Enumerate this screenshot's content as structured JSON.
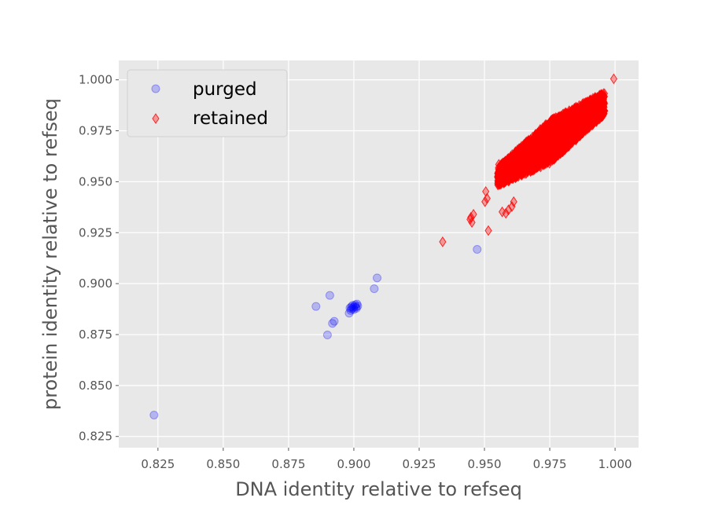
{
  "chart_data": {
    "type": "scatter",
    "title": "",
    "xlabel": "DNA identity relative to refseq",
    "ylabel": "protein identity relative to refseq",
    "xlim": [
      0.81,
      1.009
    ],
    "ylim": [
      0.8195,
      1.0095
    ],
    "xticks": [
      0.825,
      0.85,
      0.875,
      0.9,
      0.925,
      0.95,
      0.975,
      1.0
    ],
    "xtick_labels": [
      "0.825",
      "0.850",
      "0.875",
      "0.900",
      "0.925",
      "0.950",
      "0.975",
      "1.000"
    ],
    "yticks": [
      0.825,
      0.85,
      0.875,
      0.9,
      0.925,
      0.95,
      0.975,
      1.0
    ],
    "ytick_labels": [
      "0.825",
      "0.850",
      "0.875",
      "0.900",
      "0.925",
      "0.950",
      "0.975",
      "1.000"
    ],
    "grid": true,
    "background": "#e8e8e8",
    "legend_position": "top-left",
    "series": [
      {
        "name": "purged",
        "marker": "circle",
        "color": "#0000ff",
        "alpha": 0.22,
        "points": [
          [
            0.8235,
            0.8355
          ],
          [
            0.8855,
            0.8888
          ],
          [
            0.8908,
            0.8942
          ],
          [
            0.8899,
            0.8748
          ],
          [
            0.8918,
            0.8805
          ],
          [
            0.8925,
            0.8815
          ],
          [
            0.8982,
            0.8855
          ],
          [
            0.8988,
            0.8868
          ],
          [
            0.8992,
            0.8876
          ],
          [
            0.8998,
            0.8882
          ],
          [
            0.9002,
            0.8888
          ],
          [
            0.8995,
            0.8893
          ],
          [
            0.9008,
            0.8885
          ],
          [
            0.9005,
            0.8896
          ],
          [
            0.9012,
            0.89
          ],
          [
            0.899,
            0.8886
          ],
          [
            0.9015,
            0.889
          ],
          [
            0.8985,
            0.888
          ],
          [
            0.9,
            0.8873
          ],
          [
            0.901,
            0.8879
          ],
          [
            0.9078,
            0.8975
          ],
          [
            0.9089,
            0.9028
          ],
          [
            0.9472,
            0.9168
          ]
        ]
      },
      {
        "name": "retained",
        "marker": "diamond",
        "color": "#ff0000",
        "alpha": 0.35,
        "points": [
          [
            0.934,
            0.9205
          ],
          [
            0.9445,
            0.9315
          ],
          [
            0.9452,
            0.93
          ],
          [
            0.9458,
            0.934
          ],
          [
            0.9448,
            0.9325
          ],
          [
            0.9502,
            0.9402
          ],
          [
            0.9505,
            0.9452
          ],
          [
            0.951,
            0.9418
          ],
          [
            0.9515,
            0.926
          ],
          [
            0.9552,
            0.9498
          ],
          [
            0.9568,
            0.9352
          ],
          [
            0.9582,
            0.9345
          ],
          [
            0.9592,
            0.9362
          ],
          [
            0.9605,
            0.9378
          ],
          [
            0.9612,
            0.9402
          ],
          [
            0.9555,
            0.9585
          ],
          [
            0.96,
            0.962
          ],
          [
            0.965,
            0.9668
          ],
          [
            0.97,
            0.97
          ],
          [
            0.975,
            0.976
          ],
          [
            0.98,
            0.98
          ],
          [
            0.985,
            0.984
          ],
          [
            0.99,
            0.988
          ],
          [
            0.995,
            0.992
          ],
          [
            0.9995,
            1.0005
          ]
        ]
      }
    ],
    "retained_dense_band": {
      "note": "dense cloud of retained points",
      "x_range": [
        0.955,
        0.996
      ],
      "lower_edge": [
        [
          0.955,
          0.948
        ],
        [
          0.975,
          0.959
        ],
        [
          0.996,
          0.983
        ]
      ],
      "upper_edge": [
        [
          0.955,
          0.957
        ],
        [
          0.975,
          0.98
        ],
        [
          0.996,
          0.994
        ]
      ]
    }
  }
}
